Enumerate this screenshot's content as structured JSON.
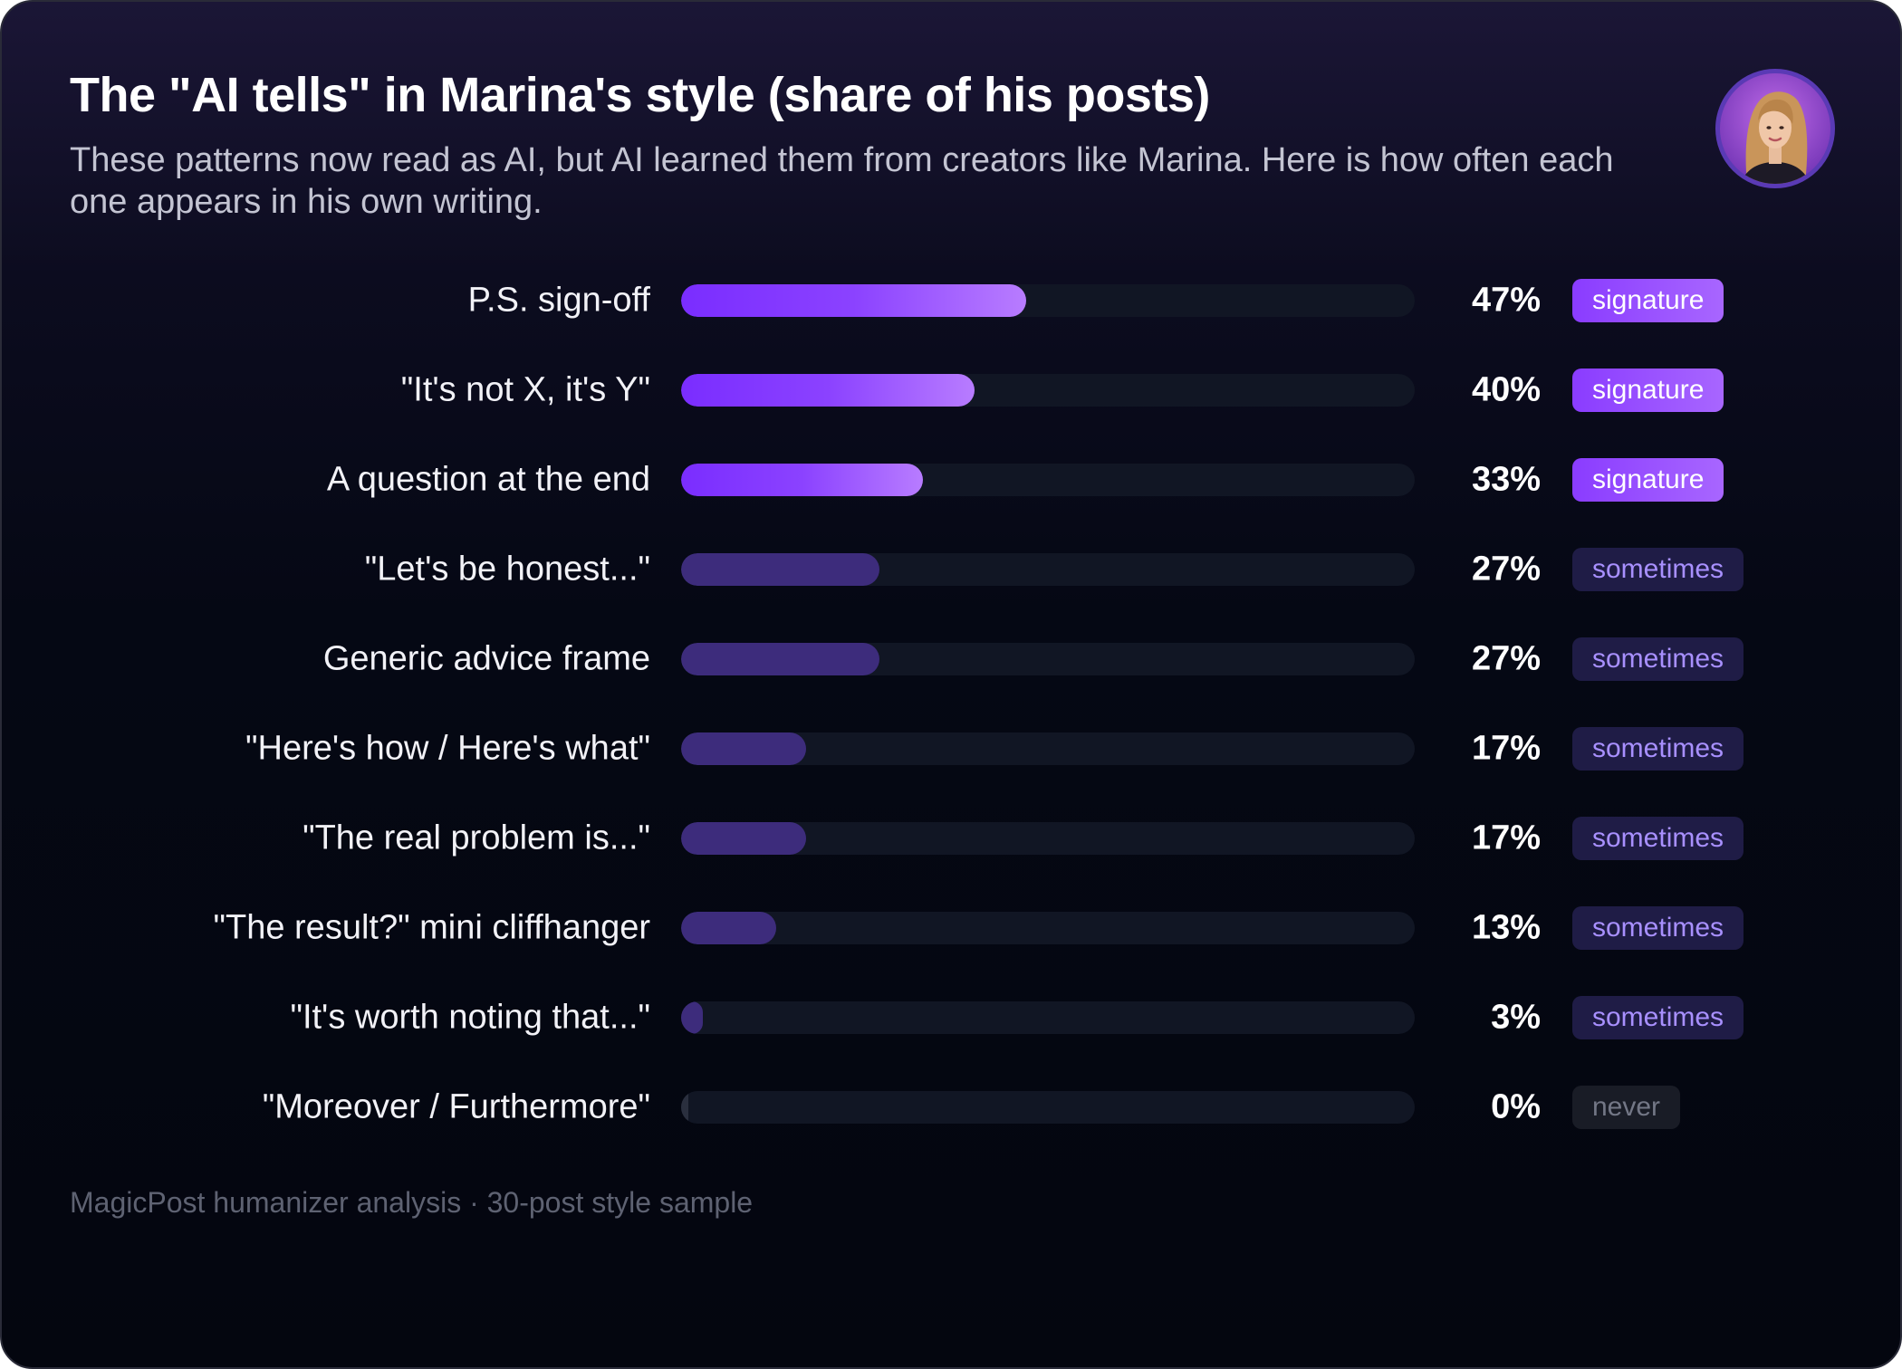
{
  "header": {
    "title": "The \"AI tells\" in Marina's style (share of his posts)",
    "subtitle": "These patterns now read as AI, but AI learned them from creators like Marina. Here is how often each one appears in his own writing."
  },
  "footer": {
    "note": "MagicPost humanizer analysis · 30-post style sample"
  },
  "colors": {
    "signature_bar": "#8b42ff",
    "sometimes_bar": "#3d2c7c",
    "track": "#111624",
    "background": "#04060f"
  },
  "chart_data": {
    "type": "bar",
    "orientation": "horizontal",
    "title": "The \"AI tells\" in Marina's style (share of his posts)",
    "xlim": [
      0,
      100
    ],
    "unit": "%",
    "grid": false,
    "categories": [
      "P.S. sign-off",
      "\"It's not X, it's Y\"",
      "A question at the end",
      "\"Let's be honest...\"",
      "Generic advice frame",
      "\"Here's how / Here's what\"",
      "\"The real problem is...\"",
      "\"The result?\" mini cliffhanger",
      "\"It's worth noting that...\"",
      "\"Moreover / Furthermore\""
    ],
    "values": [
      47,
      40,
      33,
      27,
      27,
      17,
      17,
      13,
      3,
      0
    ],
    "value_labels": [
      "47%",
      "40%",
      "33%",
      "27%",
      "27%",
      "17%",
      "17%",
      "13%",
      "3%",
      "0%"
    ],
    "tags": [
      "signature",
      "signature",
      "signature",
      "sometimes",
      "sometimes",
      "sometimes",
      "sometimes",
      "sometimes",
      "sometimes",
      "never"
    ]
  }
}
